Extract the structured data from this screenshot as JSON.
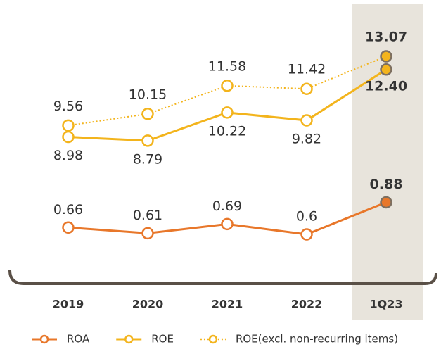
{
  "chart_data": {
    "type": "line",
    "categories": [
      "2019",
      "2020",
      "2021",
      "2022",
      "1Q23"
    ],
    "ylim": [
      2,
      14.5
    ],
    "y2lim": [
      0.25,
      2.4
    ],
    "series": [
      {
        "name": "ROA",
        "color": "#e8772a",
        "axis": "y2",
        "values": [
          0.66,
          0.61,
          0.69,
          0.6,
          0.88
        ]
      },
      {
        "name": "ROE",
        "color": "#f3b41c",
        "values": [
          8.98,
          8.79,
          10.22,
          9.82,
          12.4
        ],
        "value_labels": [
          "8.98",
          "8.79",
          "10.22",
          "9.82",
          "12.40"
        ]
      },
      {
        "name": "ROE(excl. non-recurring items)",
        "color": "#f3b41c",
        "style": "dotted",
        "values": [
          9.56,
          10.15,
          11.58,
          11.42,
          13.07
        ]
      }
    ]
  }
}
